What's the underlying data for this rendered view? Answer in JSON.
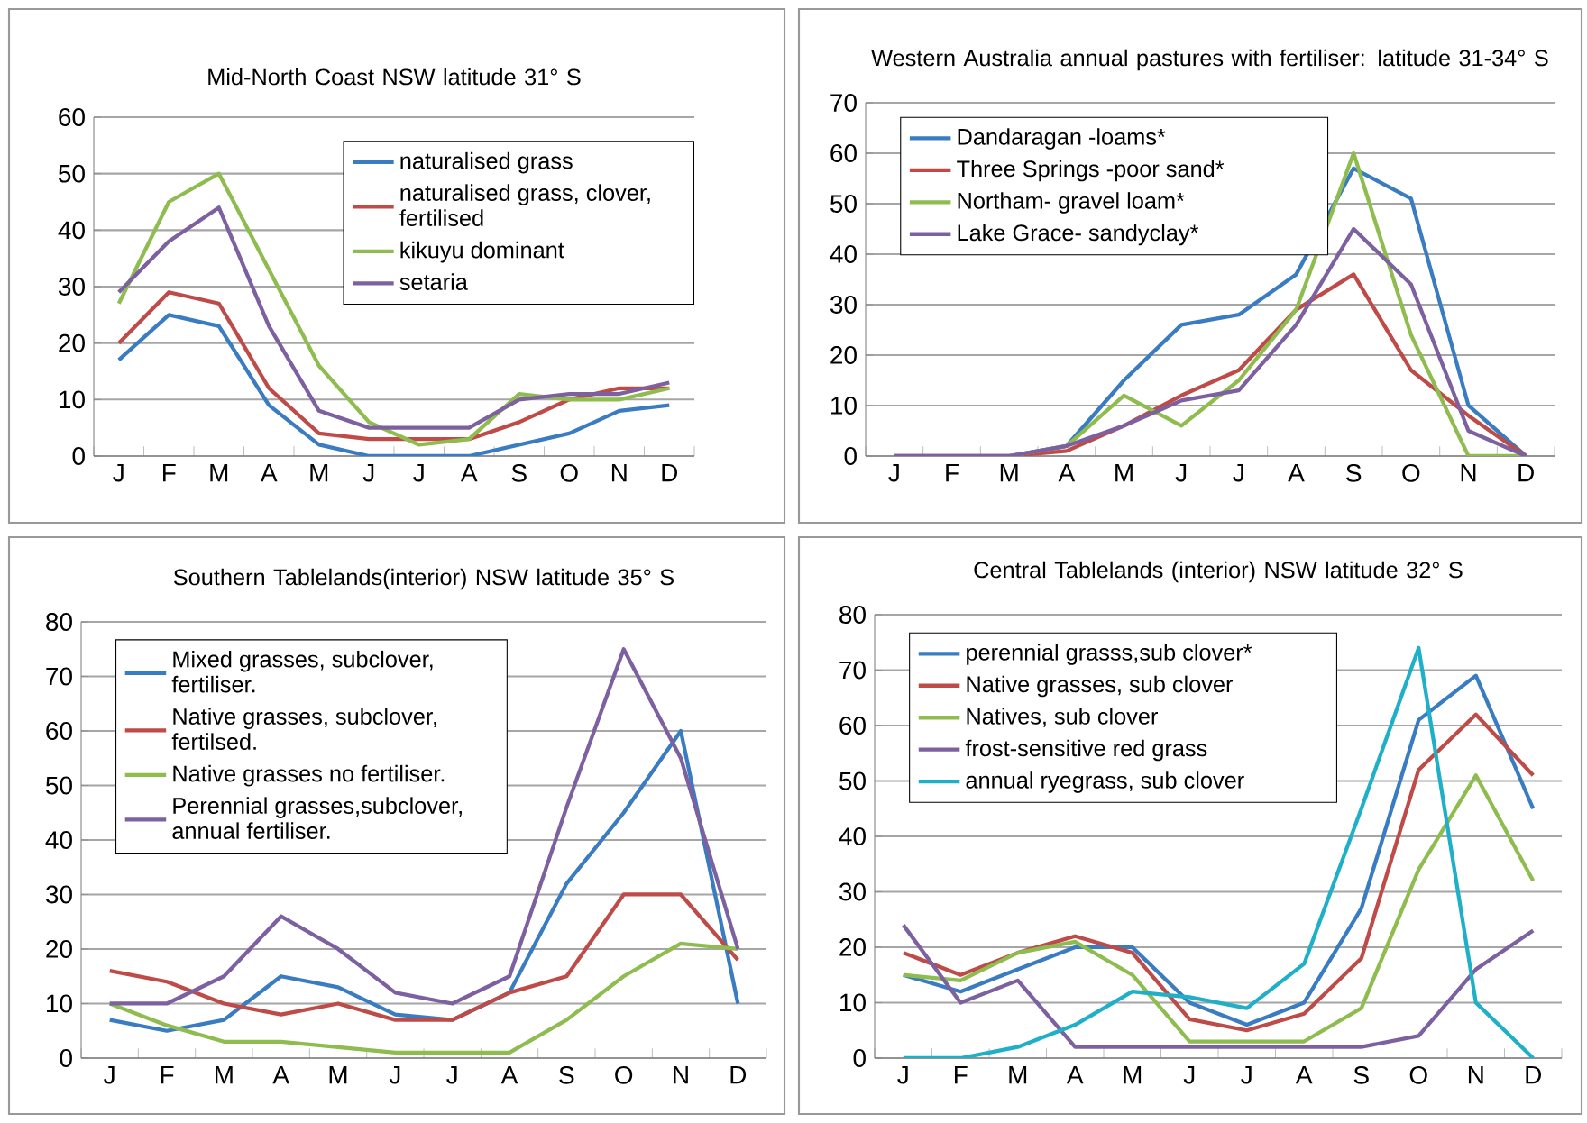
{
  "chart_data": [
    {
      "type": "line",
      "title": "Mid-North Coast NSW latitude 31° S",
      "categories": [
        "J",
        "F",
        "M",
        "A",
        "M",
        "J",
        "J",
        "A",
        "S",
        "O",
        "N",
        "D"
      ],
      "ylim": [
        0,
        60
      ],
      "yticks": [
        0,
        10,
        20,
        30,
        40,
        50,
        60
      ],
      "grid": "y",
      "legend": "top right",
      "series": [
        {
          "name": "naturalised grass",
          "color": "#3a7cc1",
          "values": [
            17,
            25,
            23,
            9,
            2,
            0,
            0,
            0,
            2,
            4,
            8,
            9
          ]
        },
        {
          "name": "naturalised grass, clover, fertilised",
          "color": "#be4b48",
          "values": [
            20,
            29,
            27,
            12,
            4,
            3,
            3,
            3,
            6,
            10,
            12,
            12
          ]
        },
        {
          "name": "kikuyu dominant",
          "color": "#8fbc4f",
          "values": [
            27,
            45,
            50,
            33,
            16,
            6,
            2,
            3,
            11,
            10,
            10,
            12
          ]
        },
        {
          "name": "setaria",
          "color": "#7d60a0",
          "values": [
            29,
            38,
            44,
            23,
            8,
            5,
            5,
            5,
            10,
            11,
            11,
            13
          ]
        }
      ]
    },
    {
      "type": "line",
      "title": "Western Australia annual pastures with fertiliser: latitude 31-34° S",
      "categories": [
        "J",
        "F",
        "M",
        "A",
        "M",
        "J",
        "J",
        "A",
        "S",
        "O",
        "N",
        "D"
      ],
      "ylim": [
        0,
        70
      ],
      "yticks": [
        0,
        10,
        20,
        30,
        40,
        50,
        60,
        70
      ],
      "grid": "y",
      "legend": "top left",
      "series": [
        {
          "name": "Dandaragan -loams*",
          "color": "#3a7cc1",
          "values": [
            null,
            null,
            0,
            2,
            15,
            26,
            28,
            36,
            57,
            51,
            10,
            0
          ]
        },
        {
          "name": "Three Springs -poor sand*",
          "color": "#be4b48",
          "values": [
            0,
            0,
            0,
            1,
            6,
            12,
            17,
            29,
            36,
            17,
            8,
            0
          ]
        },
        {
          "name": "Northam- gravel loam*",
          "color": "#8fbc4f",
          "values": [
            null,
            null,
            0,
            2,
            12,
            6,
            15,
            29,
            60,
            24,
            0,
            0
          ]
        },
        {
          "name": "Lake Grace- sandyclay*",
          "color": "#7d60a0",
          "values": [
            0,
            0,
            0,
            2,
            6,
            11,
            13,
            26,
            45,
            34,
            5,
            0
          ]
        }
      ]
    },
    {
      "type": "line",
      "title": "Southern Tablelands(interior) NSW latitude 35° S",
      "categories": [
        "J",
        "F",
        "M",
        "A",
        "M",
        "J",
        "J",
        "A",
        "S",
        "O",
        "N",
        "D"
      ],
      "ylim": [
        0,
        80
      ],
      "yticks": [
        0,
        10,
        20,
        30,
        40,
        50,
        60,
        70,
        80
      ],
      "grid": "y",
      "legend": "top left",
      "series": [
        {
          "name": "Mixed grasses, subclover, fertiliser.",
          "color": "#3a7cc1",
          "values": [
            7,
            5,
            7,
            15,
            13,
            8,
            7,
            12,
            32,
            45,
            60,
            10
          ]
        },
        {
          "name": "Native grasses, subclover, fertilsed.",
          "color": "#be4b48",
          "values": [
            16,
            14,
            10,
            8,
            10,
            7,
            7,
            12,
            15,
            30,
            30,
            18
          ]
        },
        {
          "name": "Native grasses no fertiliser.",
          "color": "#8fbc4f",
          "values": [
            10,
            6,
            3,
            3,
            2,
            1,
            1,
            1,
            7,
            15,
            21,
            20
          ]
        },
        {
          "name": "Perennial grasses,subclover, annual fertiliser.",
          "color": "#7d60a0",
          "values": [
            10,
            10,
            15,
            26,
            20,
            12,
            10,
            15,
            46,
            75,
            55,
            20
          ]
        }
      ]
    },
    {
      "type": "line",
      "title": "Central Tablelands (interior) NSW latitude 32° S",
      "categories": [
        "J",
        "F",
        "M",
        "A",
        "M",
        "J",
        "J",
        "A",
        "S",
        "O",
        "N",
        "D"
      ],
      "ylim": [
        0,
        80
      ],
      "yticks": [
        0,
        10,
        20,
        30,
        40,
        50,
        60,
        70,
        80
      ],
      "grid": "y",
      "legend": "top left",
      "series": [
        {
          "name": "perennial grasss,sub clover*",
          "color": "#3a7cc1",
          "values": [
            15,
            12,
            16,
            20,
            20,
            10,
            6,
            10,
            27,
            61,
            69,
            45
          ]
        },
        {
          "name": "Native grasses, sub clover",
          "color": "#be4b48",
          "values": [
            19,
            15,
            19,
            22,
            19,
            7,
            5,
            8,
            18,
            52,
            62,
            51
          ]
        },
        {
          "name": "Natives, sub clover",
          "color": "#8fbc4f",
          "values": [
            15,
            14,
            19,
            21,
            15,
            3,
            3,
            3,
            9,
            34,
            51,
            32
          ]
        },
        {
          "name": "frost-sensitive red grass",
          "color": "#7d60a0",
          "values": [
            24,
            10,
            14,
            2,
            2,
            2,
            2,
            2,
            2,
            4,
            16,
            23
          ]
        },
        {
          "name": "annual ryegrass, sub clover",
          "color": "#1fb0c8",
          "values": [
            0,
            0,
            2,
            6,
            12,
            11,
            9,
            17,
            45,
            74,
            10,
            0
          ]
        }
      ]
    }
  ]
}
